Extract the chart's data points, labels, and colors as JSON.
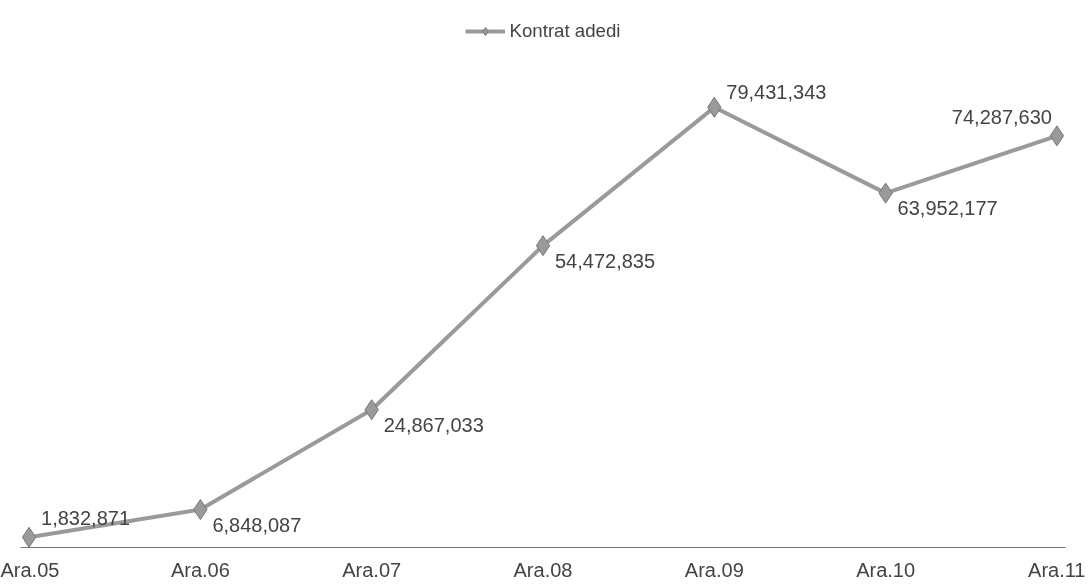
{
  "chart_data": {
    "type": "line",
    "categories": [
      "Ara.05",
      "Ara.06",
      "Ara.07",
      "Ara.08",
      "Ara.09",
      "Ara.10",
      "Ara.11"
    ],
    "series": [
      {
        "name": "Kontrat adedi",
        "color": "#9a9a9a",
        "values": [
          1832871,
          6848087,
          24867033,
          54472835,
          79431343,
          63952177,
          74287630
        ],
        "value_labels": [
          "1,832,871",
          "6,848,087",
          "24,867,033",
          "54,472,835",
          "79,431,343",
          "63,952,177",
          "74,287,630"
        ]
      }
    ],
    "legend": "top",
    "marker": "diamond",
    "grid": false
  }
}
